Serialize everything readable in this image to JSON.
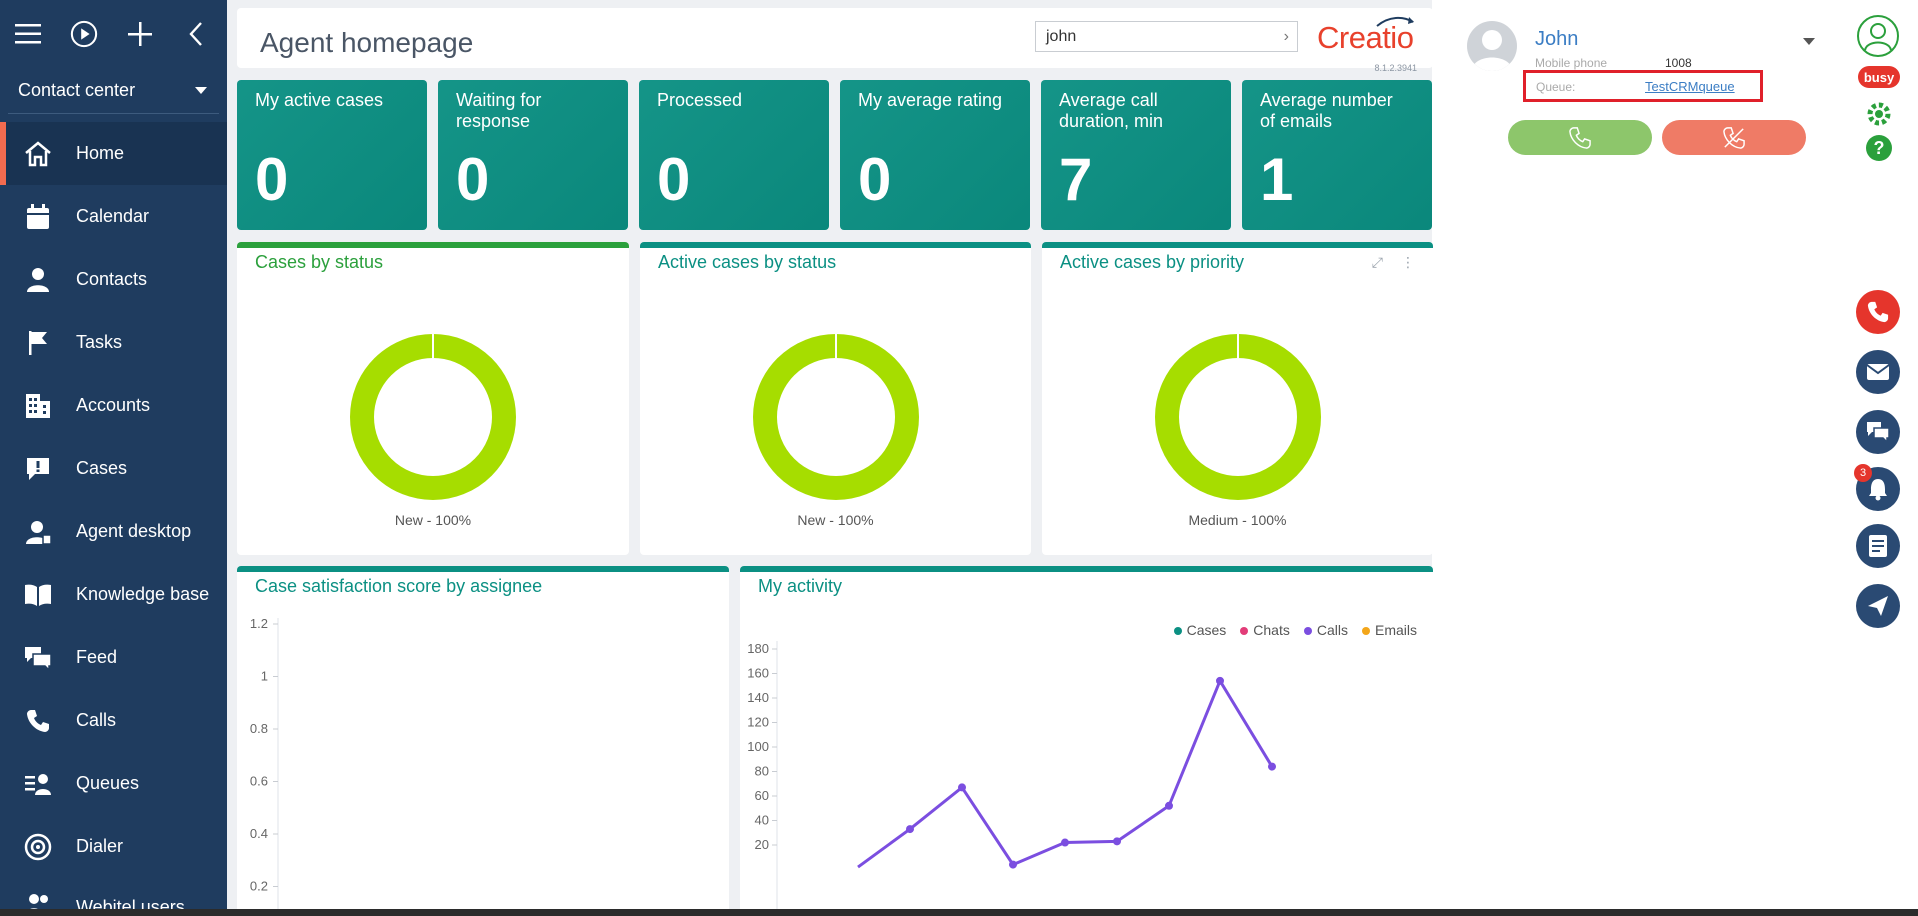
{
  "sidebar": {
    "workplace": "Contact center",
    "items": [
      {
        "label": "Home",
        "icon": "home-icon",
        "active": true
      },
      {
        "label": "Calendar",
        "icon": "calendar-icon"
      },
      {
        "label": "Contacts",
        "icon": "person-icon"
      },
      {
        "label": "Tasks",
        "icon": "flag-icon"
      },
      {
        "label": "Accounts",
        "icon": "building-icon"
      },
      {
        "label": "Cases",
        "icon": "cases-icon"
      },
      {
        "label": "Agent desktop",
        "icon": "agent-icon"
      },
      {
        "label": "Knowledge base",
        "icon": "book-icon"
      },
      {
        "label": "Feed",
        "icon": "feed-icon"
      },
      {
        "label": "Calls",
        "icon": "phone-icon"
      },
      {
        "label": "Queues",
        "icon": "queues-icon"
      },
      {
        "label": "Dialer",
        "icon": "dialer-icon"
      },
      {
        "label": "Webitel users",
        "icon": "users-icon"
      }
    ]
  },
  "header": {
    "title": "Agent homepage",
    "search_value": "john",
    "logo_text": "Creatio",
    "version": "8.1.2.3941"
  },
  "kpis": [
    {
      "label": "My active cases",
      "value": "0"
    },
    {
      "label": "Waiting for response",
      "value": "0"
    },
    {
      "label": "Processed",
      "value": "0"
    },
    {
      "label": "My average rating",
      "value": "0"
    },
    {
      "label": "Average call duration, min",
      "value": "7"
    },
    {
      "label": "Average number of emails",
      "value": "1"
    }
  ],
  "donuts": [
    {
      "title": "Cases by status",
      "label": "New - 100%"
    },
    {
      "title": "Active cases by status",
      "label": "New - 100%"
    },
    {
      "title": "Active cases by priority",
      "label": "Medium - 100%"
    }
  ],
  "colors": {
    "sidebar": "#1f3c5f",
    "teal": "#0b9083",
    "donut": "#a6dd00",
    "calls_series": "#7b4ee0",
    "cases_series": "#0b9083",
    "chats_series": "#e23c78",
    "emails_series": "#f3a61a"
  },
  "chart_data": [
    {
      "type": "bar",
      "title": "Case satisfaction score by assignee",
      "ylim": [
        0,
        1.2
      ],
      "yticks": [
        "1.2",
        "1",
        "0.8",
        "0.6",
        "0.4",
        "0.2"
      ],
      "series": []
    },
    {
      "type": "line",
      "title": "My activity",
      "ylim": [
        0,
        180
      ],
      "yticks": [
        "180",
        "160",
        "140",
        "120",
        "100",
        "80",
        "60",
        "40",
        "20"
      ],
      "legend": [
        "Cases",
        "Chats",
        "Calls",
        "Emails"
      ],
      "legend_position": "top-right",
      "series": [
        {
          "name": "Calls",
          "values": [
            2,
            33,
            67,
            4,
            22,
            23,
            52,
            154,
            84
          ]
        }
      ]
    }
  ],
  "right_panel": {
    "user_name": "John",
    "phone_label": "Mobile phone",
    "phone_value": "1008",
    "queue_label": "Queue:",
    "queue_value": "TestCRMqueue",
    "status": "busy",
    "notifications": "3"
  }
}
